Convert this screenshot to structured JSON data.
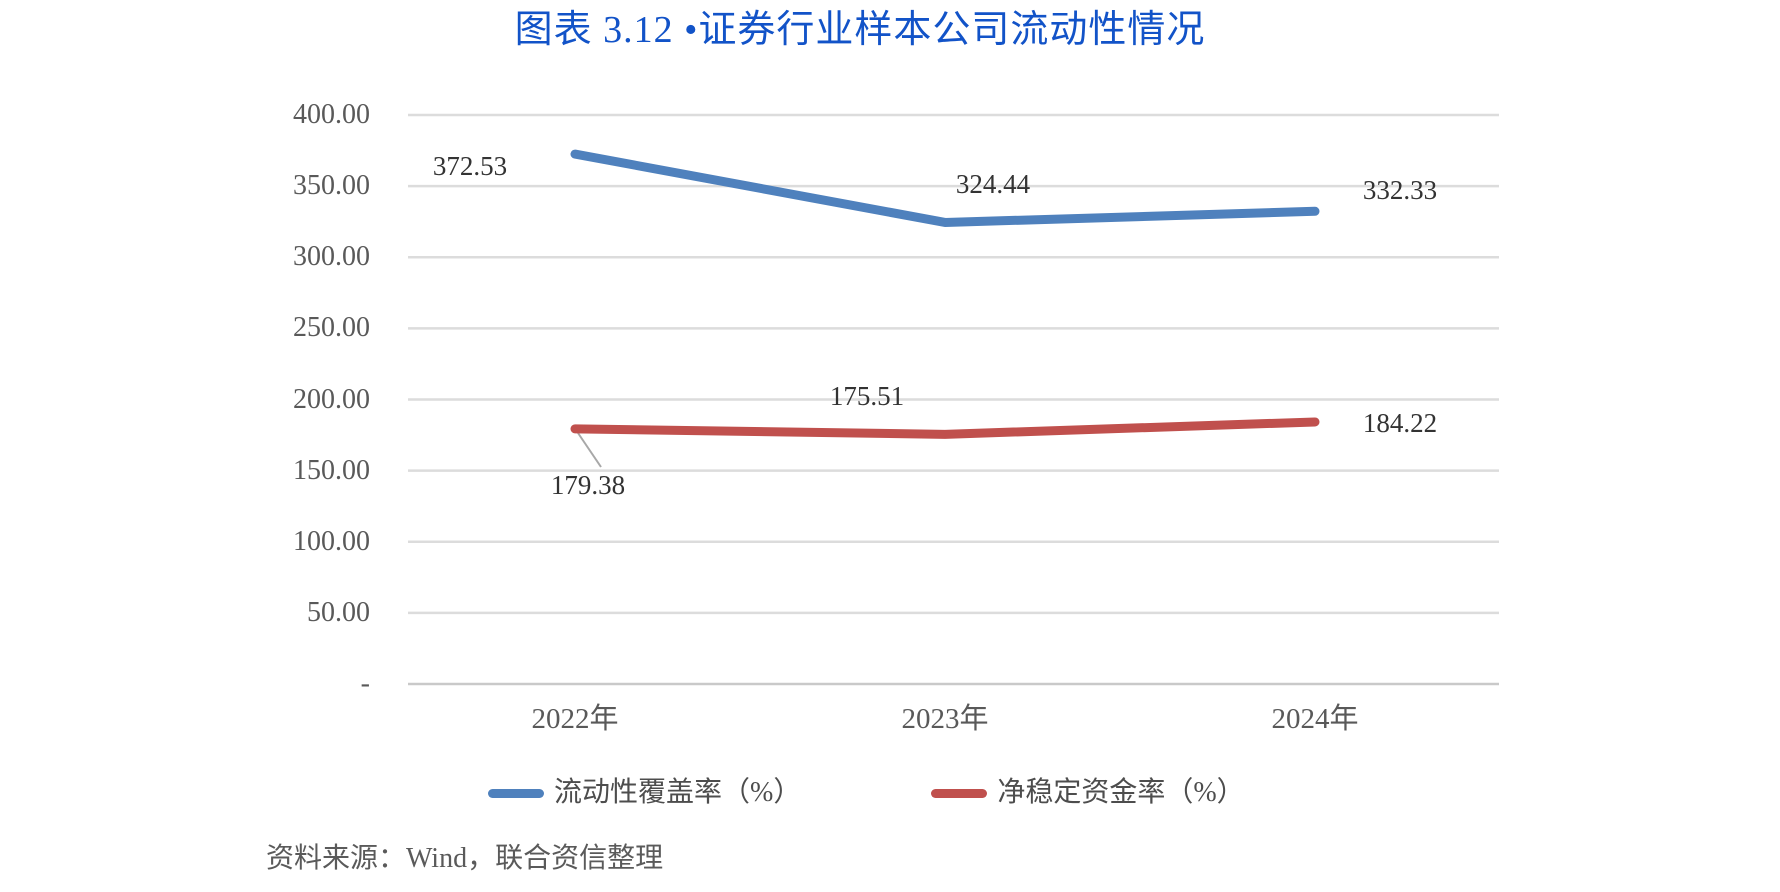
{
  "title": "图表 3.12 •证券行业样本公司流动性情况",
  "source": "资料来源：Wind，联合资信整理",
  "colors": {
    "title": "#1253C8",
    "lcr_line": "#4F81BD",
    "nsfr_line": "#C0504D",
    "gridline": "#DCDCDC",
    "axis_line": "#C9C9C9",
    "tick_text": "#595959",
    "data_label_text": "#333333",
    "leader_line": "#A8A8A8"
  },
  "chart_data": {
    "type": "line",
    "title": "图表 3.12 •证券行业样本公司流动性情况",
    "categories": [
      "2022年",
      "2023年",
      "2024年"
    ],
    "series": [
      {
        "name": "流动性覆盖率（%）",
        "color": "#4F81BD",
        "values": [
          372.53,
          324.44,
          332.33
        ]
      },
      {
        "name": "净稳定资金率（%）",
        "color": "#C0504D",
        "values": [
          179.38,
          175.51,
          184.22
        ]
      }
    ],
    "ylim": [
      0,
      400
    ],
    "ytick_step": 50,
    "ytick_labels": [
      "400.00",
      "350.00",
      "300.00",
      "250.00",
      "200.00",
      "150.00",
      "100.00",
      "50.00",
      "-"
    ],
    "grid": true,
    "legend_position": "bottom",
    "xlabel": "",
    "ylabel": ""
  }
}
